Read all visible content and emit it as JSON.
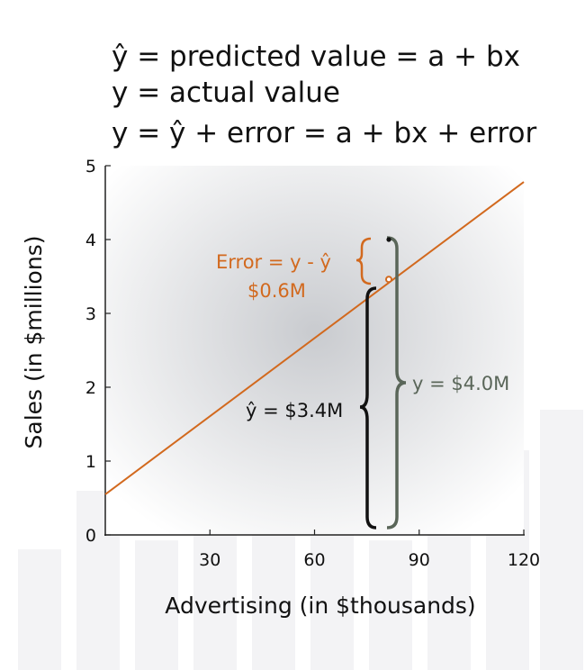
{
  "equations": {
    "line1": "ŷ = predicted value = a + bx",
    "line2": "y = actual value",
    "line3": "y = ŷ + error = a + bx + error"
  },
  "annotations": {
    "error_label": "Error = y - ŷ",
    "error_value": "$0.6M",
    "predicted_label": "ŷ = $3.4M",
    "actual_label": "y = $4.0M"
  },
  "colors": {
    "regression_line": "#d2691e",
    "error": "#d2691e",
    "predicted_brace": "#111111",
    "actual_brace": "#5a6659",
    "axis": "#222222"
  },
  "chart_data": {
    "type": "line",
    "title": "",
    "xlabel": "Advertising (in $thousands)",
    "ylabel": "Sales (in $millions)",
    "xlim": [
      0,
      120
    ],
    "ylim": [
      0,
      5
    ],
    "x_ticks": [
      30,
      60,
      90,
      120
    ],
    "y_ticks": [
      0,
      1,
      2,
      3,
      4,
      5
    ],
    "series": [
      {
        "x": [
          0,
          120
        ],
        "y": [
          0.55,
          4.78
        ]
      }
    ],
    "points": {
      "actual": {
        "x": 80,
        "y": 4.0
      },
      "predicted": {
        "x": 80,
        "y": 3.4
      }
    },
    "grid": false
  }
}
